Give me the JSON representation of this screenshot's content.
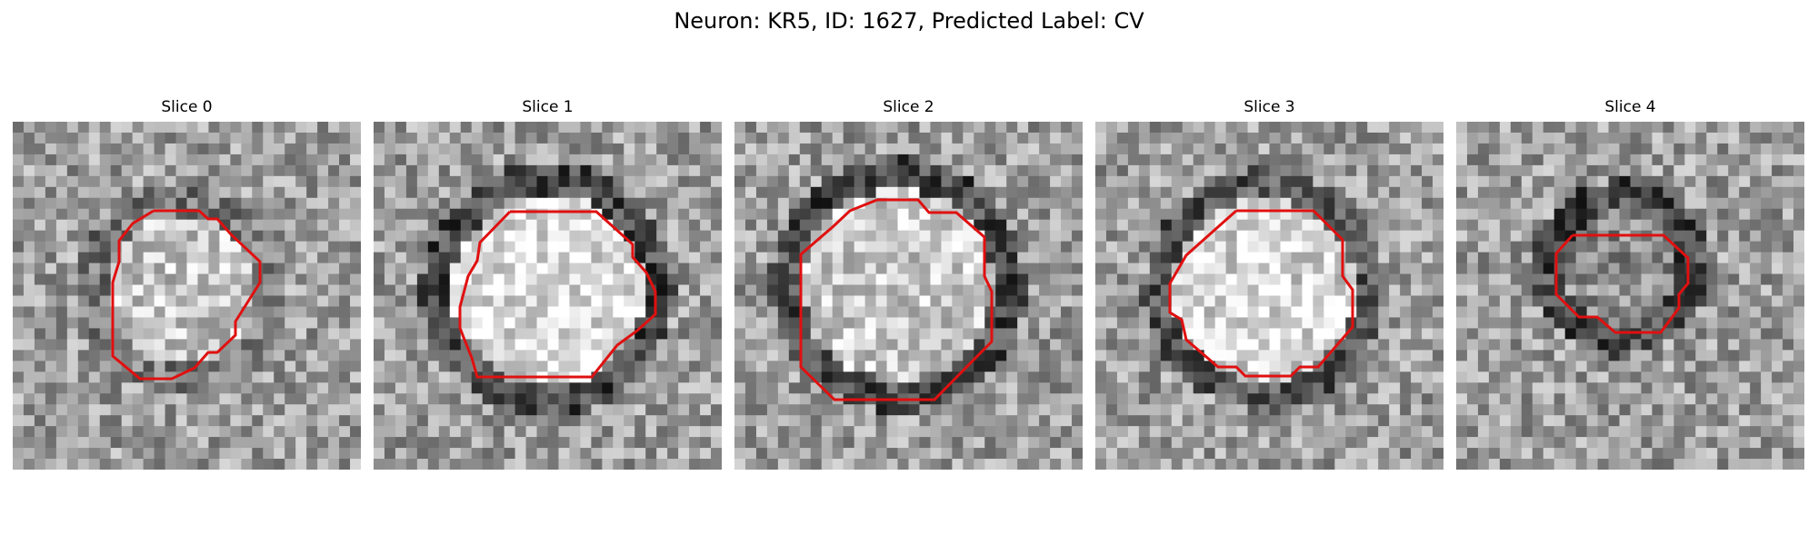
{
  "title": "Neuron: KR5, ID: 1627, Predicted Label: CV",
  "panels": [
    {
      "title": "Slice 0"
    },
    {
      "title": "Slice 1"
    },
    {
      "title": "Slice 2"
    },
    {
      "title": "Slice 3"
    },
    {
      "title": "Slice 4"
    }
  ],
  "colors": {
    "contour": "#e01010",
    "background": "#ffffff"
  }
}
